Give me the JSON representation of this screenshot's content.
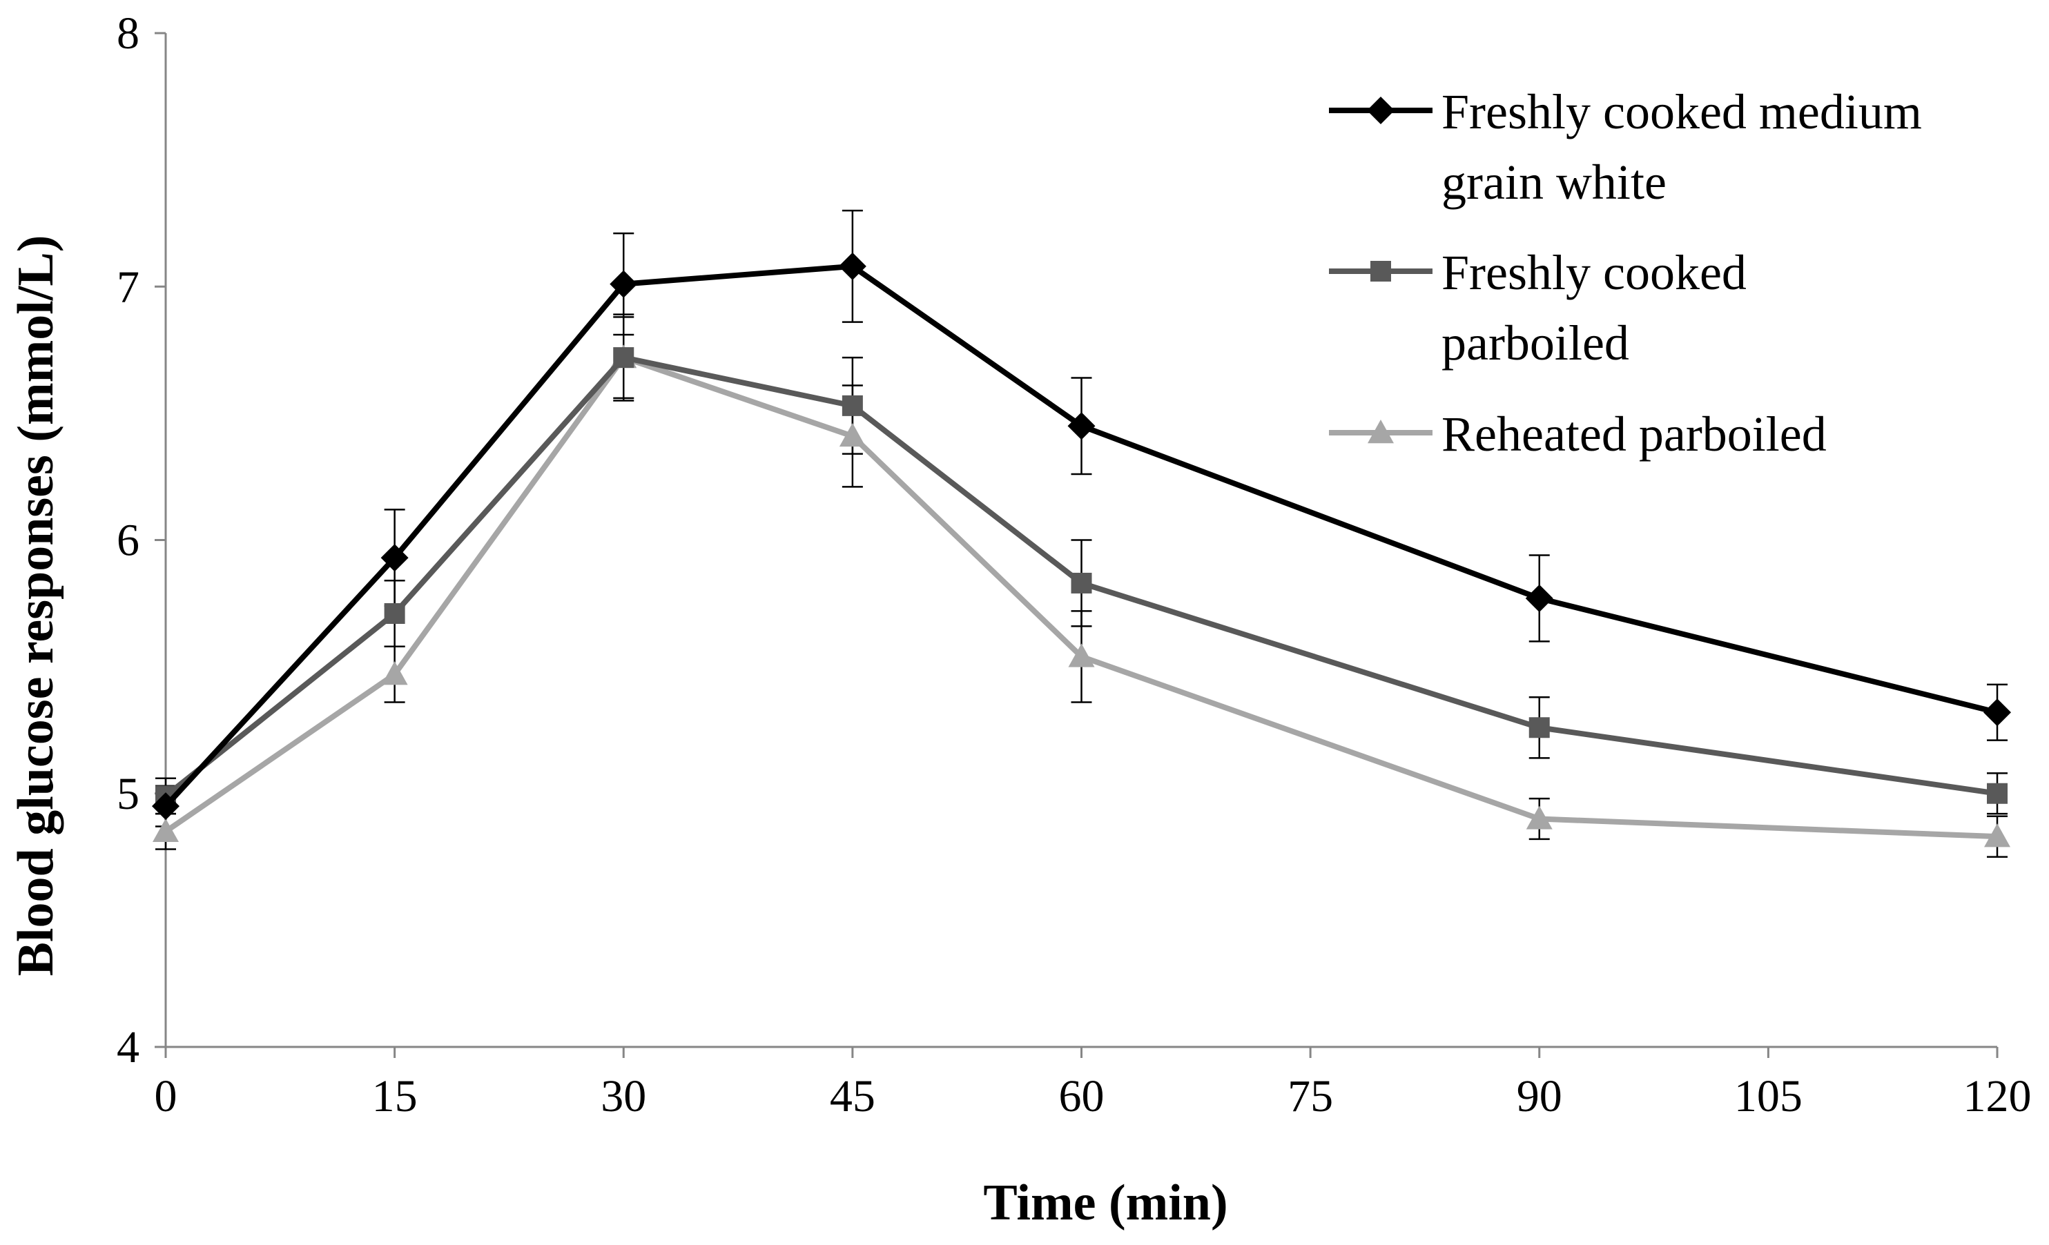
{
  "chart_data": {
    "type": "line",
    "title": "",
    "xlabel": "Time (min)",
    "ylabel": "Blood glucose responses (mmol/L)",
    "xlim": [
      0,
      120
    ],
    "ylim": [
      4,
      8
    ],
    "xticks": [
      0,
      15,
      30,
      45,
      60,
      75,
      90,
      105,
      120
    ],
    "xtick_labels": [
      "0",
      "15",
      "30",
      "45",
      "60",
      "75",
      "90",
      "105",
      "120"
    ],
    "yticks": [
      4,
      5,
      6,
      7,
      8
    ],
    "ytick_labels": [
      "4",
      "5",
      "6",
      "7",
      "8"
    ],
    "grid": false,
    "legend_position": "top-right",
    "series": [
      {
        "name": "Freshly cooked medium grain white",
        "legend_lines": [
          "Freshly cooked medium",
          "grain white"
        ],
        "color": "#000000",
        "marker": "diamond",
        "x": [
          0,
          15,
          30,
          45,
          60,
          90,
          120
        ],
        "values": [
          4.95,
          5.93,
          7.01,
          7.08,
          6.45,
          5.77,
          5.32
        ],
        "errors": [
          0.08,
          0.19,
          0.2,
          0.22,
          0.19,
          0.17,
          0.11
        ]
      },
      {
        "name": "Freshly cooked parboiled",
        "legend_lines": [
          "Freshly cooked",
          "parboiled"
        ],
        "color": "#595959",
        "marker": "square",
        "x": [
          0,
          15,
          30,
          45,
          60,
          90,
          120
        ],
        "values": [
          4.99,
          5.71,
          6.72,
          6.53,
          5.83,
          5.26,
          5.0
        ],
        "errors": [
          0.07,
          0.13,
          0.16,
          0.19,
          0.17,
          0.12,
          0.08
        ]
      },
      {
        "name": "Reheated parboiled",
        "legend_lines": [
          "Reheated parboiled"
        ],
        "color": "#a6a6a6",
        "marker": "triangle",
        "x": [
          0,
          15,
          30,
          45,
          60,
          90,
          120
        ],
        "values": [
          4.85,
          5.47,
          6.72,
          6.41,
          5.54,
          4.9,
          4.83
        ],
        "errors": [
          0.07,
          0.11,
          0.17,
          0.2,
          0.18,
          0.08,
          0.08
        ]
      }
    ]
  }
}
